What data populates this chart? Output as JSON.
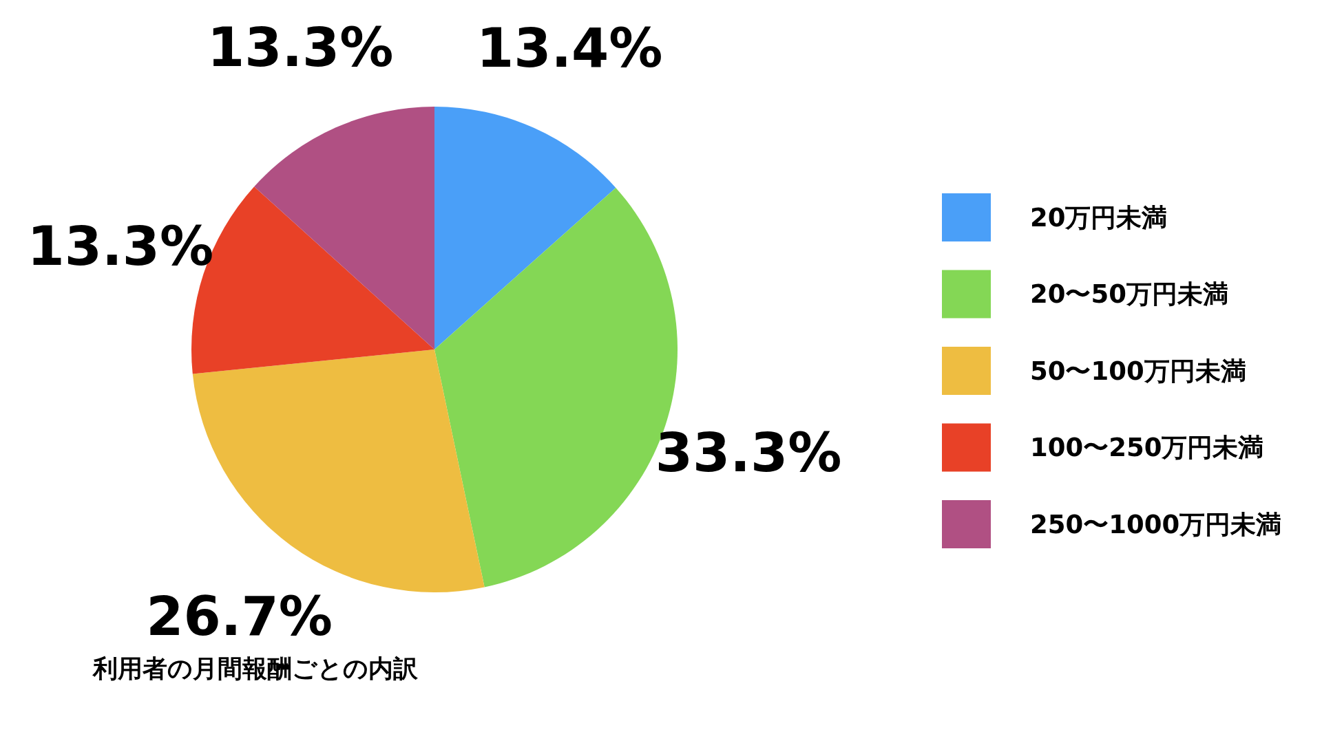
{
  "chart_data": {
    "type": "pie",
    "categories": [
      "20万円未満",
      "20〜50万円未満",
      "50〜100万円未満",
      "100〜250万円未満",
      "250〜1000万円未満"
    ],
    "values": [
      13.4,
      33.3,
      26.7,
      13.3,
      13.3
    ],
    "value_labels": [
      "13.4%",
      "33.3%",
      "26.7%",
      "13.3%",
      "13.3%"
    ],
    "colors": [
      "#4a9ff8",
      "#84d755",
      "#eebd41",
      "#e84127",
      "#b05083"
    ],
    "legend": "right",
    "annotations": [
      "利用者の月間報酬ごとの内訳"
    ]
  }
}
